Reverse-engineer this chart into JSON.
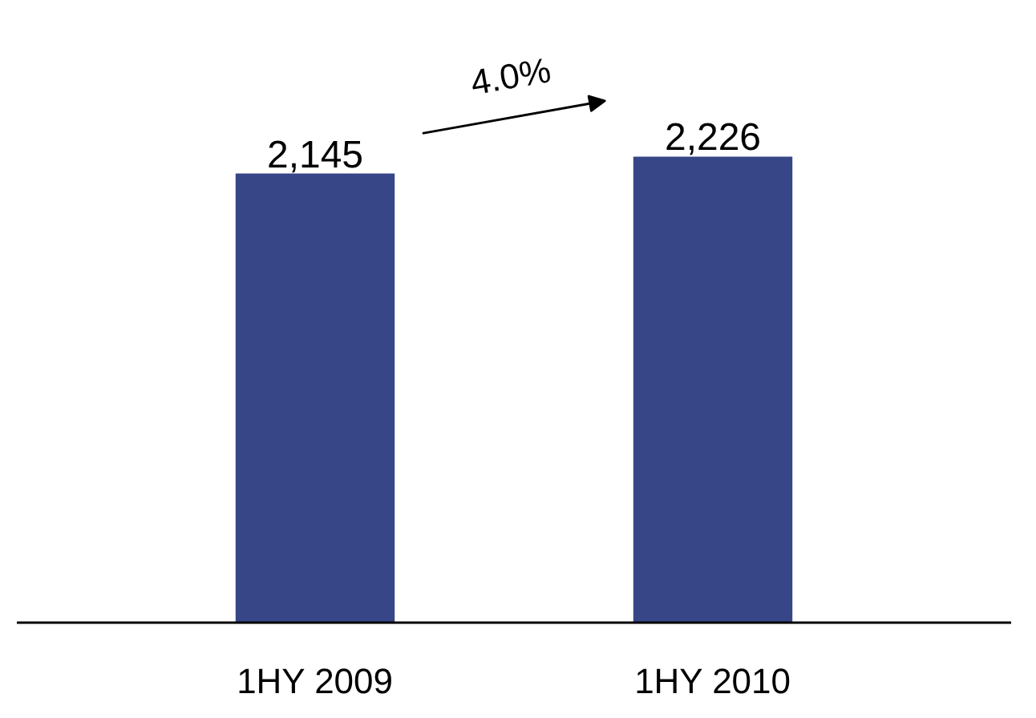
{
  "chart_data": {
    "type": "bar",
    "categories": [
      "1HY 2009",
      "1HY 2010"
    ],
    "values": [
      2145,
      2226
    ],
    "value_labels": [
      "2,145",
      "2,226"
    ],
    "color": "#364687",
    "annotations": [
      "4.0%"
    ]
  }
}
